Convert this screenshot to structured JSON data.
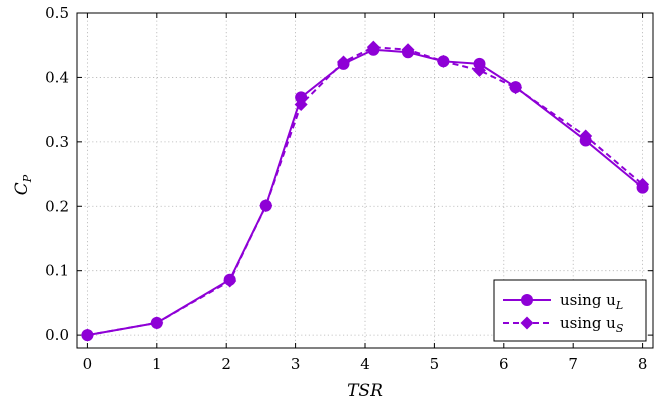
{
  "chart_data": {
    "type": "line",
    "xlabel": "TSR",
    "ylabel": "C",
    "ylabel_sub": "P",
    "xlim": [
      -0.15,
      8.15
    ],
    "ylim": [
      -0.02,
      0.5
    ],
    "x_ticks": [
      0,
      1,
      2,
      3,
      4,
      5,
      6,
      7,
      8
    ],
    "y_ticks": [
      0.0,
      0.1,
      0.2,
      0.3,
      0.4,
      0.5
    ],
    "x_tick_labels": [
      "0",
      "1",
      "2",
      "3",
      "4",
      "5",
      "6",
      "7",
      "8"
    ],
    "y_tick_labels": [
      "0.0",
      "0.1",
      "0.2",
      "0.3",
      "0.4",
      "0.5"
    ],
    "grid": true,
    "legend_position": "bottom-right",
    "series": [
      {
        "name": "using u",
        "name_sub": "L",
        "marker": "circle",
        "line": "solid",
        "color": "#8e00d6",
        "x": [
          0,
          1,
          2.05,
          2.57,
          3.08,
          3.69,
          4.12,
          4.62,
          5.13,
          5.65,
          6.17,
          7.18,
          8.0
        ],
        "y": [
          0.0,
          0.019,
          0.086,
          0.201,
          0.369,
          0.421,
          0.443,
          0.439,
          0.425,
          0.421,
          0.385,
          0.302,
          0.229
        ]
      },
      {
        "name": "using u",
        "name_sub": "S",
        "marker": "diamond",
        "line": "dashed",
        "color": "#8e00d6",
        "x": [
          0,
          1,
          2.05,
          2.57,
          3.08,
          3.69,
          4.12,
          4.62,
          5.13,
          5.65,
          6.17,
          7.18,
          8.0
        ],
        "y": [
          0.0,
          0.019,
          0.084,
          0.201,
          0.358,
          0.424,
          0.447,
          0.443,
          0.425,
          0.411,
          0.384,
          0.309,
          0.234
        ]
      }
    ]
  }
}
